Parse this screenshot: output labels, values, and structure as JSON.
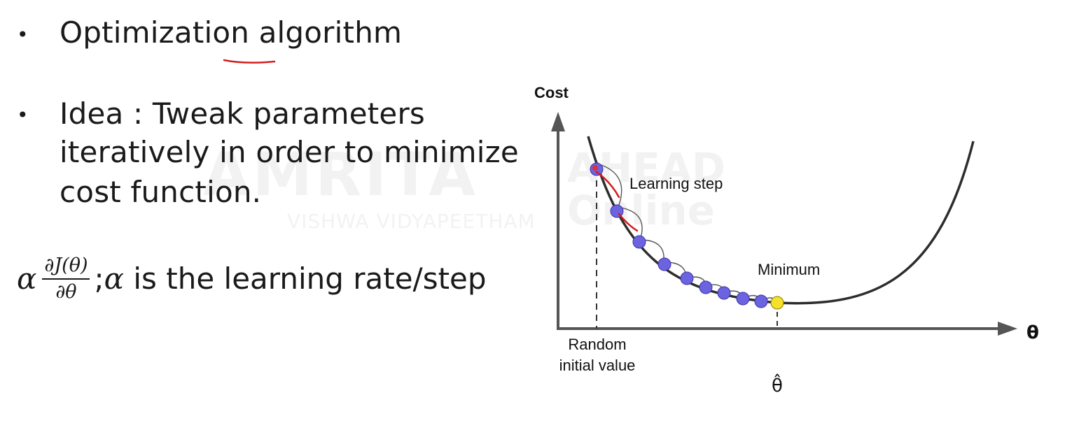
{
  "slide": {
    "bullet1": "Optimization algorithm",
    "bullet2_line1": "Idea :  Tweak parameters",
    "bullet2_line2": "iteratively in order to minimize",
    "bullet2_line3": "cost function.",
    "bullet_glyph": "•",
    "formula": {
      "alpha": "α",
      "numerator": "∂J(θ)",
      "denominator": "∂θ",
      "rest_sep": " ; ",
      "rest_alpha": "α",
      "rest_text": " is the learning rate/step"
    }
  },
  "watermark": {
    "main": "AMRITA",
    "sub": "VISHWA VIDYAPEETHAM",
    "right_top": "AHEAD",
    "right_bottom": "Online"
  },
  "diagram": {
    "y_label": "Cost",
    "x_label": "θ",
    "learning_step_label": "Learning step",
    "minimum_label": "Minimum",
    "random_label_line1": "Random",
    "random_label_line2": "initial value",
    "theta_hat_label": "θ̂",
    "colors": {
      "step_point": "#6b63e0",
      "minimum_point": "#f5e12a",
      "start_point": "#e0303a",
      "annotation": "#d21f1f"
    }
  }
}
